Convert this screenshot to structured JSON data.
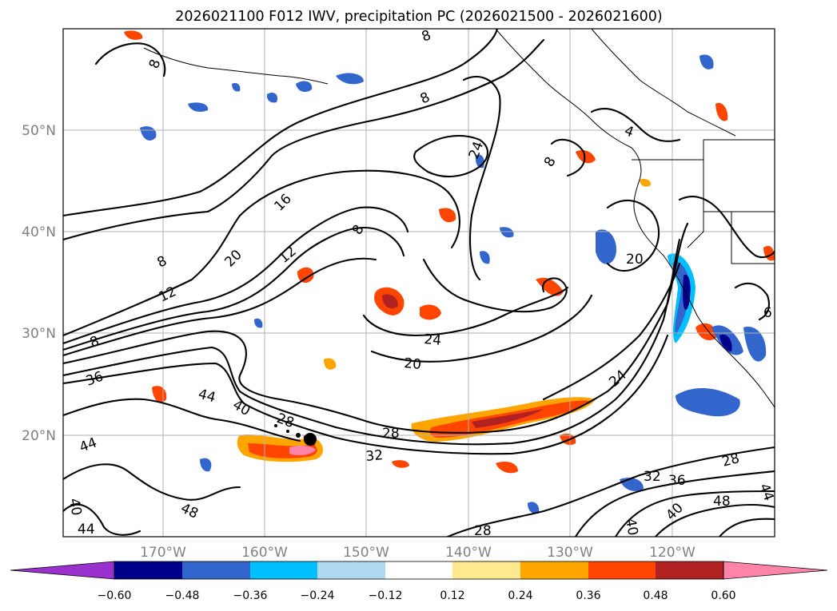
{
  "title": "2026021100 F012 IWV, precipitation PC (2026021500 - 2026021600)",
  "lat_labels": [
    "50°N",
    "40°N",
    "30°N",
    "20°N"
  ],
  "lon_labels": [
    "170°W",
    "160°W",
    "150°W",
    "140°W",
    "130°W",
    "120°W"
  ],
  "colorbar": {
    "colors": [
      "#9932cc",
      "#00008b",
      "#3366cc",
      "#00bfff",
      "#add8f0",
      "#ffffff",
      "#ffe98f",
      "#ffa500",
      "#ff4500",
      "#b22222",
      "#ff85a8"
    ],
    "tick_labels": [
      "−0.60",
      "−0.48",
      "−0.36",
      "−0.24",
      "−0.12",
      "0.12",
      "0.24",
      "0.36",
      "0.48",
      "0.60"
    ]
  },
  "contour_labels": [
    "8",
    "8",
    "8",
    "4",
    "24",
    "8",
    "16",
    "8",
    "12",
    "20",
    "8",
    "12",
    "20",
    "6",
    "24",
    "20",
    "8",
    "36",
    "44",
    "40",
    "28",
    "28",
    "32",
    "24",
    "28",
    "32",
    "36",
    "44",
    "48",
    "40",
    "44",
    "48",
    "40",
    "40",
    "28",
    "44"
  ],
  "colors": {
    "contour": "#000000",
    "grid": "#b0b0b0",
    "axis_label": "#808080"
  }
}
